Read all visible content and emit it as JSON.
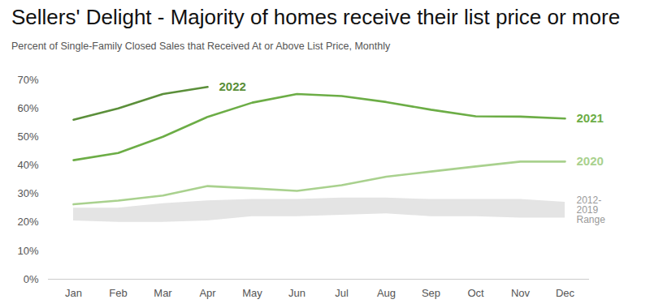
{
  "chart_data": {
    "type": "line",
    "title": "Sellers' Delight - Majority of homes receive their list price or more",
    "subtitle": "Percent of Single-Family Closed Sales that Received At or Above List Price, Monthly",
    "categories": [
      "Jan",
      "Feb",
      "Mar",
      "Apr",
      "May",
      "Jun",
      "Jul",
      "Aug",
      "Sep",
      "Oct",
      "Nov",
      "Dec"
    ],
    "series": [
      {
        "name": "2022",
        "color": "#5b8f3a",
        "values": [
          56,
          60,
          65,
          67.5,
          null,
          null,
          null,
          null,
          null,
          null,
          null,
          null
        ]
      },
      {
        "name": "2021",
        "color": "#6cad46",
        "values": [
          41.8,
          44.3,
          50,
          57,
          62,
          65,
          64.3,
          62.2,
          59.5,
          57.2,
          57.1,
          56.4
        ]
      },
      {
        "name": "2020",
        "color": "#a9d18e",
        "values": [
          26.3,
          27.6,
          29.4,
          32.7,
          31.9,
          31,
          33,
          36,
          37.8,
          39.6,
          41.3,
          41.3
        ]
      }
    ],
    "range": {
      "name": "2012-2019 Range",
      "color": "#e4e4e4",
      "lower": [
        20.5,
        20,
        20,
        20.5,
        22,
        22,
        22.5,
        23,
        22,
        22,
        21.5,
        21.5
      ],
      "upper": [
        25,
        25,
        26.5,
        27.5,
        28,
        28,
        28.5,
        28.5,
        28,
        28,
        28,
        27
      ]
    },
    "ylim": [
      0,
      70
    ],
    "yticks": [
      {
        "value": 0,
        "label": "0%"
      },
      {
        "value": 10,
        "label": "10%"
      },
      {
        "value": 20,
        "label": "20%"
      },
      {
        "value": 30,
        "label": "30%"
      },
      {
        "value": 40,
        "label": "40%"
      },
      {
        "value": 50,
        "label": "50%"
      },
      {
        "value": 60,
        "label": "60%"
      },
      {
        "value": 70,
        "label": "70%"
      }
    ],
    "grid": false
  }
}
